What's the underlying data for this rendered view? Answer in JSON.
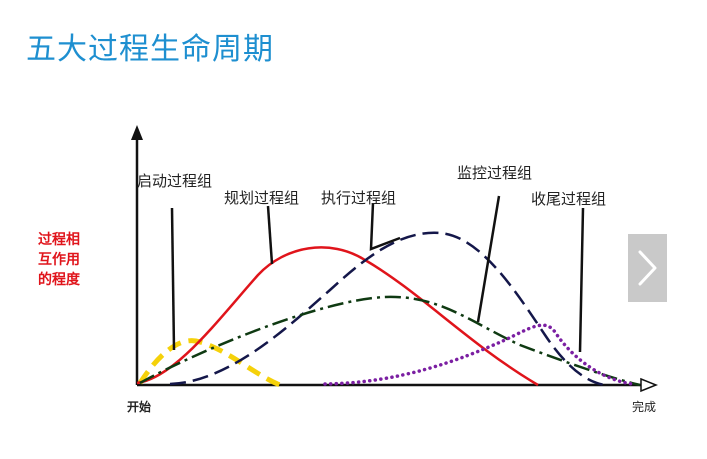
{
  "header": {
    "title": "五大过程生命周期"
  },
  "diagram": {
    "y_label_lines": [
      "过程相",
      "互作用",
      "的程度"
    ],
    "x_start": "开始",
    "x_end": "完成",
    "process_groups": {
      "initiating": "启动过程组",
      "planning": "规划过程组",
      "executing": "执行过程组",
      "monitoring": "监控过程组",
      "closing": "收尾过程组"
    },
    "colors": {
      "initiating": "#f5d10a",
      "planning": "#e0141b",
      "executing": "#14174a",
      "monitoring": "#0f3a12",
      "closing": "#7b1fa2",
      "y_label": "#e0141b",
      "title": "#1e8fd0"
    }
  },
  "navigation": {
    "next_icon": "chevron-right-icon"
  }
}
